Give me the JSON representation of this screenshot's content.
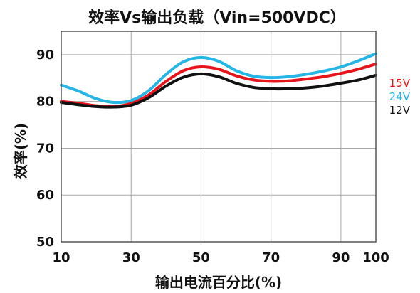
{
  "chart_data": {
    "type": "line",
    "title": "效率Vs输出负载（Vin=500VDC）",
    "xlabel": "输出电流百分比(%)",
    "ylabel": "效率(%)",
    "xlim": [
      10,
      100
    ],
    "ylim": [
      50,
      95
    ],
    "xticks": [
      10,
      30,
      50,
      70,
      90,
      100
    ],
    "yticks": [
      50,
      60,
      70,
      80,
      90
    ],
    "grid": true,
    "legend_position": "right",
    "series": [
      {
        "name": "15V",
        "color": "#e8141b",
        "x": [
          10,
          15,
          20,
          25,
          30,
          35,
          40,
          45,
          50,
          55,
          60,
          65,
          70,
          75,
          80,
          85,
          90,
          95,
          100
        ],
        "y": [
          80.0,
          79.6,
          79.1,
          78.9,
          79.6,
          81.4,
          84.3,
          86.6,
          87.4,
          86.9,
          85.5,
          84.6,
          84.3,
          84.4,
          84.8,
          85.3,
          86.0,
          86.9,
          88.0
        ]
      },
      {
        "name": "24V",
        "color": "#25b6e6",
        "x": [
          10,
          15,
          20,
          25,
          30,
          35,
          40,
          45,
          50,
          55,
          60,
          65,
          70,
          75,
          80,
          85,
          90,
          95,
          100
        ],
        "y": [
          83.5,
          82.2,
          80.6,
          79.8,
          80.2,
          82.3,
          85.8,
          88.5,
          89.4,
          88.6,
          86.6,
          85.4,
          85.1,
          85.3,
          85.8,
          86.5,
          87.4,
          88.7,
          90.2
        ]
      },
      {
        "name": "12V",
        "color": "#111111",
        "x": [
          10,
          15,
          20,
          25,
          30,
          35,
          40,
          45,
          50,
          55,
          60,
          65,
          70,
          75,
          80,
          85,
          90,
          95,
          100
        ],
        "y": [
          79.8,
          79.3,
          78.9,
          78.8,
          79.2,
          80.8,
          83.3,
          85.2,
          85.9,
          85.3,
          83.9,
          83.0,
          82.7,
          82.7,
          82.9,
          83.3,
          83.9,
          84.6,
          85.6
        ]
      }
    ]
  }
}
